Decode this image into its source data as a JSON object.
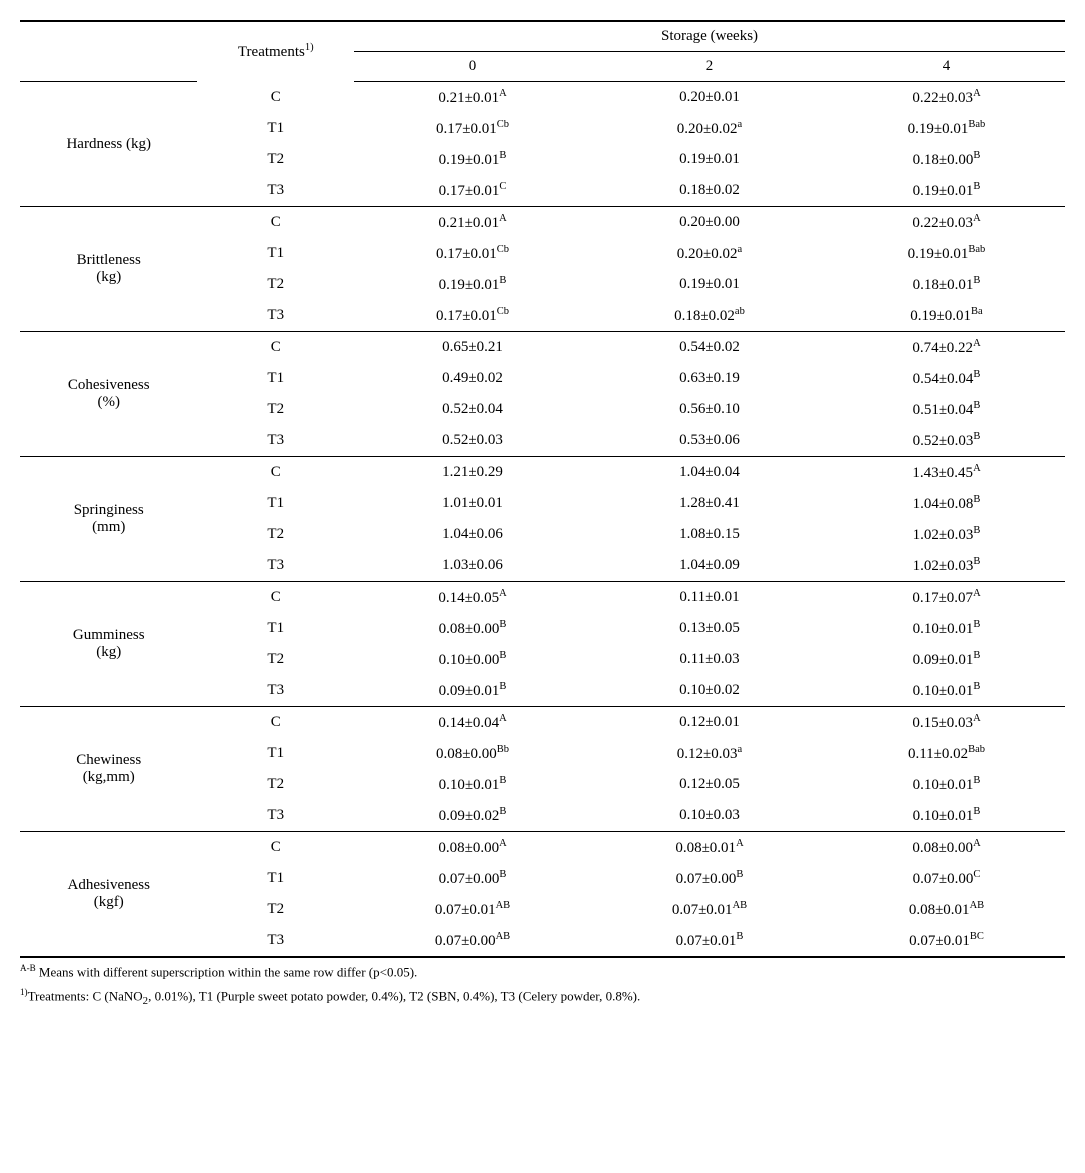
{
  "header": {
    "treatments_label": "Treatments",
    "treatments_sup": "1)",
    "storage_label": "Storage (weeks)",
    "weeks": [
      "0",
      "2",
      "4"
    ]
  },
  "groups": [
    {
      "label": "Hardness (kg)",
      "rows": [
        {
          "t": "C",
          "v": [
            "0.21±0.01",
            "0.20±0.01",
            "0.22±0.03"
          ],
          "s": [
            "A",
            "",
            "A"
          ]
        },
        {
          "t": "T1",
          "v": [
            "0.17±0.01",
            "0.20±0.02",
            "0.19±0.01"
          ],
          "s": [
            "Cb",
            "a",
            "Bab"
          ]
        },
        {
          "t": "T2",
          "v": [
            "0.19±0.01",
            "0.19±0.01",
            "0.18±0.00"
          ],
          "s": [
            "B",
            "",
            "B"
          ]
        },
        {
          "t": "T3",
          "v": [
            "0.17±0.01",
            "0.18±0.02",
            "0.19±0.01"
          ],
          "s": [
            "C",
            "",
            "B"
          ]
        }
      ]
    },
    {
      "label_line1": "Brittleness",
      "label_line2": "(kg)",
      "rows": [
        {
          "t": "C",
          "v": [
            "0.21±0.01",
            "0.20±0.00",
            "0.22±0.03"
          ],
          "s": [
            "A",
            "",
            "A"
          ]
        },
        {
          "t": "T1",
          "v": [
            "0.17±0.01",
            "0.20±0.02",
            "0.19±0.01"
          ],
          "s": [
            "Cb",
            "a",
            "Bab"
          ]
        },
        {
          "t": "T2",
          "v": [
            "0.19±0.01",
            "0.19±0.01",
            "0.18±0.01"
          ],
          "s": [
            "B",
            "",
            "B"
          ]
        },
        {
          "t": "T3",
          "v": [
            "0.17±0.01",
            "0.18±0.02",
            "0.19±0.01"
          ],
          "s": [
            "Cb",
            "ab",
            "Ba"
          ]
        }
      ]
    },
    {
      "label_line1": "Cohesiveness",
      "label_line2": "(%)",
      "rows": [
        {
          "t": "C",
          "v": [
            "0.65±0.21",
            "0.54±0.02",
            "0.74±0.22"
          ],
          "s": [
            "",
            "",
            "A"
          ]
        },
        {
          "t": "T1",
          "v": [
            "0.49±0.02",
            "0.63±0.19",
            "0.54±0.04"
          ],
          "s": [
            "",
            "",
            "B"
          ]
        },
        {
          "t": "T2",
          "v": [
            "0.52±0.04",
            "0.56±0.10",
            "0.51±0.04"
          ],
          "s": [
            "",
            "",
            "B"
          ]
        },
        {
          "t": "T3",
          "v": [
            "0.52±0.03",
            "0.53±0.06",
            "0.52±0.03"
          ],
          "s": [
            "",
            "",
            "B"
          ]
        }
      ]
    },
    {
      "label_line1": "Springiness",
      "label_line2": "(mm)",
      "rows": [
        {
          "t": "C",
          "v": [
            "1.21±0.29",
            "1.04±0.04",
            "1.43±0.45"
          ],
          "s": [
            "",
            "",
            "A"
          ]
        },
        {
          "t": "T1",
          "v": [
            "1.01±0.01",
            "1.28±0.41",
            "1.04±0.08"
          ],
          "s": [
            "",
            "",
            "B"
          ]
        },
        {
          "t": "T2",
          "v": [
            "1.04±0.06",
            "1.08±0.15",
            "1.02±0.03"
          ],
          "s": [
            "",
            "",
            "B"
          ]
        },
        {
          "t": "T3",
          "v": [
            "1.03±0.06",
            "1.04±0.09",
            "1.02±0.03"
          ],
          "s": [
            "",
            "",
            "B"
          ]
        }
      ]
    },
    {
      "label_line1": "Gumminess",
      "label_line2": "(kg)",
      "rows": [
        {
          "t": "C",
          "v": [
            "0.14±0.05",
            "0.11±0.01",
            "0.17±0.07"
          ],
          "s": [
            "A",
            "",
            "A"
          ]
        },
        {
          "t": "T1",
          "v": [
            "0.08±0.00",
            "0.13±0.05",
            "0.10±0.01"
          ],
          "s": [
            "B",
            "",
            "B"
          ]
        },
        {
          "t": "T2",
          "v": [
            "0.10±0.00",
            "0.11±0.03",
            "0.09±0.01"
          ],
          "s": [
            "B",
            "",
            "B"
          ]
        },
        {
          "t": "T3",
          "v": [
            "0.09±0.01",
            "0.10±0.02",
            "0.10±0.01"
          ],
          "s": [
            "B",
            "",
            "B"
          ]
        }
      ]
    },
    {
      "label_line1": "Chewiness",
      "label_line2": "(kg,mm)",
      "rows": [
        {
          "t": "C",
          "v": [
            "0.14±0.04",
            "0.12±0.01",
            "0.15±0.03"
          ],
          "s": [
            "A",
            "",
            "A"
          ]
        },
        {
          "t": "T1",
          "v": [
            "0.08±0.00",
            "0.12±0.03",
            "0.11±0.02"
          ],
          "s": [
            "Bb",
            "a",
            "Bab"
          ]
        },
        {
          "t": "T2",
          "v": [
            "0.10±0.01",
            "0.12±0.05",
            "0.10±0.01"
          ],
          "s": [
            "B",
            "",
            "B"
          ]
        },
        {
          "t": "T3",
          "v": [
            "0.09±0.02",
            "0.10±0.03",
            "0.10±0.01"
          ],
          "s": [
            "B",
            "",
            "B"
          ]
        }
      ]
    },
    {
      "label_line1": "Adhesiveness",
      "label_line2": "(kgf)",
      "rows": [
        {
          "t": "C",
          "v": [
            "0.08±0.00",
            "0.08±0.01",
            "0.08±0.00"
          ],
          "s": [
            "A",
            "A",
            "A"
          ]
        },
        {
          "t": "T1",
          "v": [
            "0.07±0.00",
            "0.07±0.00",
            "0.07±0.00"
          ],
          "s": [
            "B",
            "B",
            "C"
          ]
        },
        {
          "t": "T2",
          "v": [
            "0.07±0.01",
            "0.07±0.01",
            "0.08±0.01"
          ],
          "s": [
            "AB",
            "AB",
            "AB"
          ]
        },
        {
          "t": "T3",
          "v": [
            "0.07±0.00",
            "0.07±0.01",
            "0.07±0.01"
          ],
          "s": [
            "AB",
            "B",
            "BC"
          ]
        }
      ]
    }
  ],
  "footnotes": {
    "f1_sup": "A-B",
    "f1": " Means with different superscription within the same row differ (p<0.05).",
    "f2_sup": "1)",
    "f2_a": "Treatments: C (NaNO",
    "f2_sub": "2",
    "f2_b": ", 0.01%), T1 (Purple sweet potato powder, 0.4%), T2 (SBN, 0.4%), T3 (Celery powder, 0.8%)."
  }
}
